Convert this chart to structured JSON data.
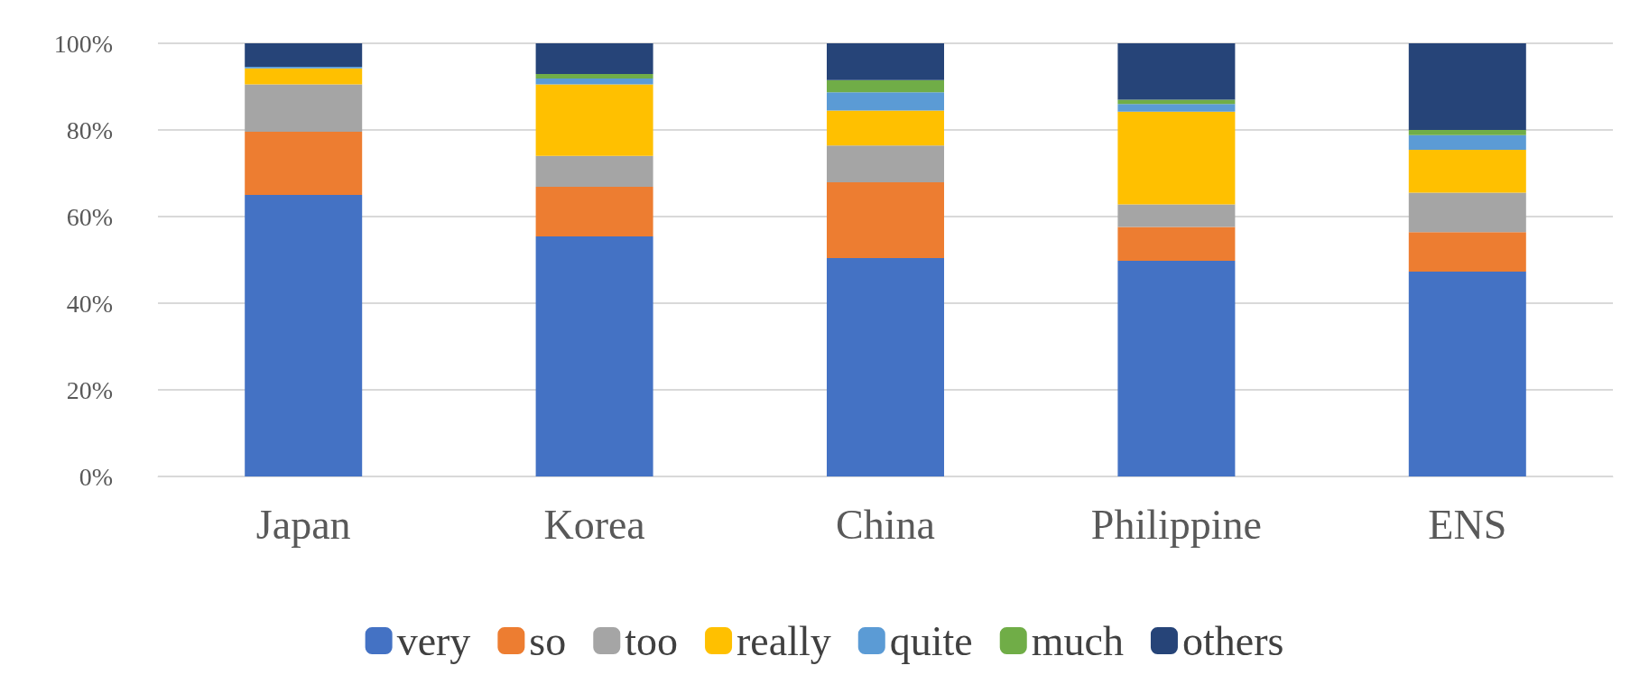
{
  "chart_data": {
    "type": "bar",
    "stacked": true,
    "categories": [
      "Japan",
      "Korea",
      "China",
      "Philippine",
      "ENS"
    ],
    "series": [
      {
        "name": "very",
        "color": "#4472c4",
        "values": [
          65,
          55.4,
          50.4,
          49.8,
          47.3
        ]
      },
      {
        "name": "so",
        "color": "#ed7d31",
        "values": [
          14.6,
          11.5,
          17.5,
          7.8,
          9.1
        ]
      },
      {
        "name": "too",
        "color": "#a5a5a5",
        "values": [
          10.9,
          7.1,
          8.5,
          5.2,
          9.1
        ]
      },
      {
        "name": "really",
        "color": "#ffc000",
        "values": [
          3.7,
          16.5,
          8.1,
          21.4,
          9.9
        ]
      },
      {
        "name": "quite",
        "color": "#5b9bd5",
        "values": [
          0.4,
          1.4,
          4.2,
          1.8,
          3.4
        ]
      },
      {
        "name": "much",
        "color": "#70ad47",
        "values": [
          0,
          1.0,
          2.8,
          1.0,
          1.2
        ]
      },
      {
        "name": "others",
        "color": "#264478",
        "values": [
          5.4,
          7.1,
          8.5,
          13.0,
          20.0
        ]
      }
    ],
    "ylim": [
      0,
      100
    ],
    "yticks": [
      {
        "value": 0,
        "label": "0%"
      },
      {
        "value": 20,
        "label": "20%"
      },
      {
        "value": 40,
        "label": "40%"
      },
      {
        "value": 60,
        "label": "60%"
      },
      {
        "value": 80,
        "label": "80%"
      },
      {
        "value": 100,
        "label": "100%"
      }
    ],
    "grid": "y",
    "legend": "bottom"
  }
}
